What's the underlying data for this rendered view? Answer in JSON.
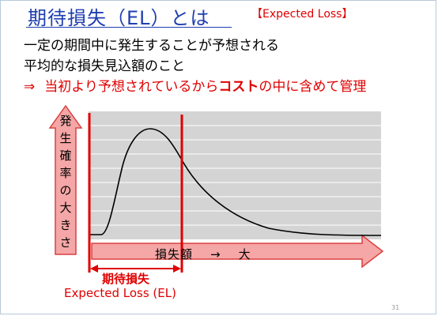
{
  "title": "期待損失（EL）とは",
  "tag": "【Expected Loss】",
  "definition_line1": "一定の期間中に発生することが予想される",
  "definition_line2": "平均的な損失見込額のこと",
  "conclusion": {
    "arrow": "⇒",
    "before": "当初より予想されているから",
    "bold": "コスト",
    "after": "の中に含めて管理"
  },
  "y_axis_chars": [
    "発",
    "生",
    "確",
    "率",
    "の",
    "大",
    "き",
    "さ"
  ],
  "x_axis": {
    "label": "損失額",
    "arrow": "→",
    "direction": "大"
  },
  "expected_loss": {
    "label_ja": "期待損失",
    "label_en": "Expected   Loss (EL)"
  },
  "page_number": "31",
  "colors": {
    "title": "#1f3fb0",
    "accent_red": "#e00000",
    "arrow_fill": "#f5a6a6",
    "arrow_stroke": "#d94040",
    "plot_bg": "#d4d4d4",
    "grid": "#ffffff"
  }
}
